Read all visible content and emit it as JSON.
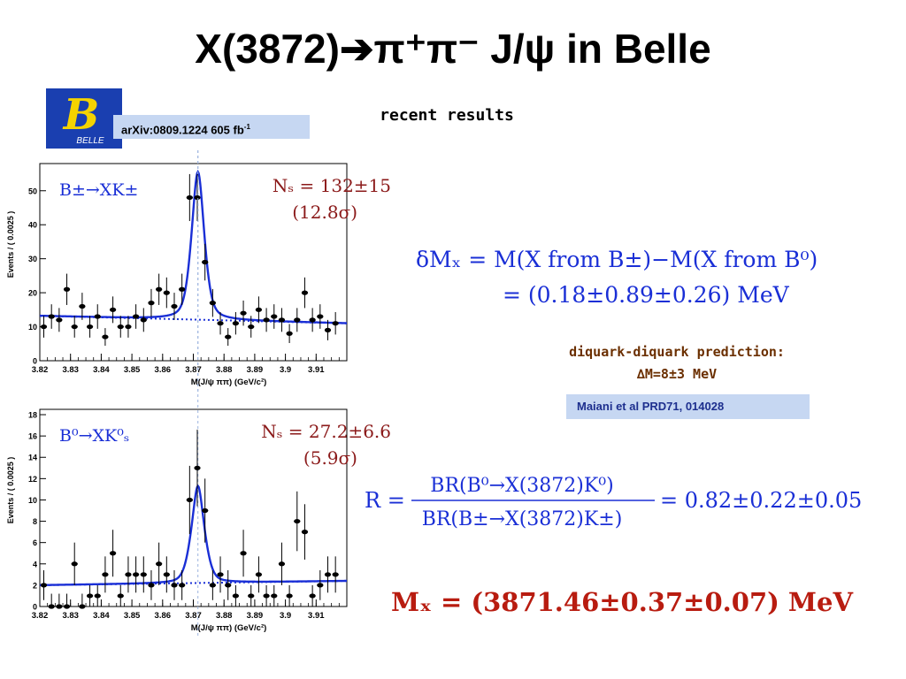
{
  "slide": {
    "title": "X(3872)➔π⁺π⁻ J/ψ in Belle",
    "subtitle": "recent results",
    "logo_text": "BELLE",
    "logo_letter": "B",
    "arxiv": "arXiv:0809.1224  605 fb",
    "arxiv_sup": "-1"
  },
  "formulas": {
    "dm_line1": "δMₓ = M(X from B±)−M(X from B⁰)",
    "dm_line2": "= (0.18±0.89±0.26) MeV",
    "r_lhs": "R =",
    "r_num": "BR(B⁰→X(3872)K⁰)",
    "r_den": "BR(B±→X(3872)K±)",
    "r_rhs": "= 0.82±0.22±0.05",
    "mx": "Mₓ = (3871.46±0.37±0.07) MeV"
  },
  "diquark": {
    "line1": "diquark-diquark prediction:",
    "line2": "∆M=8±3 MeV"
  },
  "maiani_ref": "Maiani et al PRD71, 014028",
  "colors": {
    "fit_line": "#1a2fd6",
    "signal_text": "#8b1a1a",
    "box_fill": "#c6d7f2",
    "diquark_text": "#6b2f00",
    "maiani_text": "#1d2f8e",
    "logo_blue": "#1a3fb0",
    "logo_yellow": "#f5d300"
  },
  "chart_data": [
    {
      "type": "scatter",
      "label": "B±→XK±",
      "signal_yield": "Nₛ = 132±15",
      "significance": "(12.8σ)",
      "xlabel": "M(J/ψ ππ) (GeV/c²)",
      "ylabel": "Events / ( 0.0025 )",
      "xlim": [
        3.82,
        3.92
      ],
      "ylim": [
        0,
        58
      ],
      "xticks": [
        "3.82",
        "3.83",
        "3.84",
        "3.85",
        "3.86",
        "3.87",
        "3.88",
        "3.89",
        "3.9",
        "3.91"
      ],
      "xtick_values": [
        3.82,
        3.83,
        3.84,
        3.85,
        3.86,
        3.87,
        3.88,
        3.89,
        3.9,
        3.91
      ],
      "yticks": [
        0,
        10,
        20,
        30,
        40,
        50
      ],
      "peak_line_x": 3.8715,
      "points": [
        {
          "x": 3.8213,
          "y": 10,
          "err": 3.2
        },
        {
          "x": 3.8238,
          "y": 13,
          "err": 3.6
        },
        {
          "x": 3.8263,
          "y": 12,
          "err": 3.5
        },
        {
          "x": 3.8288,
          "y": 21,
          "err": 4.6
        },
        {
          "x": 3.8313,
          "y": 10,
          "err": 3.2
        },
        {
          "x": 3.8338,
          "y": 16,
          "err": 4.0
        },
        {
          "x": 3.8363,
          "y": 10,
          "err": 3.2
        },
        {
          "x": 3.8388,
          "y": 13,
          "err": 3.6
        },
        {
          "x": 3.8413,
          "y": 7,
          "err": 2.6
        },
        {
          "x": 3.8438,
          "y": 15,
          "err": 3.9
        },
        {
          "x": 3.8463,
          "y": 10,
          "err": 3.2
        },
        {
          "x": 3.8488,
          "y": 10,
          "err": 3.2
        },
        {
          "x": 3.8513,
          "y": 13,
          "err": 3.6
        },
        {
          "x": 3.8538,
          "y": 12,
          "err": 3.5
        },
        {
          "x": 3.8563,
          "y": 17,
          "err": 4.1
        },
        {
          "x": 3.8588,
          "y": 21,
          "err": 4.6
        },
        {
          "x": 3.8613,
          "y": 20,
          "err": 4.5
        },
        {
          "x": 3.8638,
          "y": 16,
          "err": 4.0
        },
        {
          "x": 3.8663,
          "y": 21,
          "err": 4.6
        },
        {
          "x": 3.8688,
          "y": 48,
          "err": 6.9
        },
        {
          "x": 3.8713,
          "y": 48,
          "err": 6.9
        },
        {
          "x": 3.8738,
          "y": 29,
          "err": 5.4
        },
        {
          "x": 3.8763,
          "y": 17,
          "err": 4.1
        },
        {
          "x": 3.8788,
          "y": 11,
          "err": 3.3
        },
        {
          "x": 3.8813,
          "y": 7,
          "err": 2.6
        },
        {
          "x": 3.8838,
          "y": 11,
          "err": 3.3
        },
        {
          "x": 3.8863,
          "y": 14,
          "err": 3.7
        },
        {
          "x": 3.8888,
          "y": 10,
          "err": 3.2
        },
        {
          "x": 3.8913,
          "y": 15,
          "err": 3.9
        },
        {
          "x": 3.8938,
          "y": 12,
          "err": 3.5
        },
        {
          "x": 3.8963,
          "y": 13,
          "err": 3.6
        },
        {
          "x": 3.8988,
          "y": 12,
          "err": 3.5
        },
        {
          "x": 3.9013,
          "y": 8,
          "err": 2.8
        },
        {
          "x": 3.9038,
          "y": 12,
          "err": 3.5
        },
        {
          "x": 3.9063,
          "y": 20,
          "err": 4.5
        },
        {
          "x": 3.9088,
          "y": 12,
          "err": 3.5
        },
        {
          "x": 3.9113,
          "y": 13,
          "err": 3.6
        },
        {
          "x": 3.9138,
          "y": 9,
          "err": 3.0
        },
        {
          "x": 3.9163,
          "y": 11,
          "err": 3.3
        }
      ],
      "fit": {
        "background_start": 13.2,
        "background_end": 11.0,
        "peak_x": 3.8715,
        "peak_height": 43.5,
        "sigma": 0.0022,
        "gamma": 0.0022
      }
    },
    {
      "type": "scatter",
      "label": "B⁰→XK⁰ₛ",
      "signal_yield": "Nₛ = 27.2±6.6",
      "significance": "(5.9σ)",
      "xlabel": "M(J/ψ ππ) (GeV/c²)",
      "ylabel": "Events / ( 0.0025 )",
      "xlim": [
        3.82,
        3.92
      ],
      "ylim": [
        0,
        18.5
      ],
      "xticks": [
        "3.82",
        "3.83",
        "3.84",
        "3.85",
        "3.86",
        "3.87",
        "3.88",
        "3.89",
        "3.9",
        "3.91"
      ],
      "xtick_values": [
        3.82,
        3.83,
        3.84,
        3.85,
        3.86,
        3.87,
        3.88,
        3.89,
        3.9,
        3.91
      ],
      "yticks": [
        0,
        2,
        4,
        6,
        8,
        10,
        12,
        14,
        16,
        18
      ],
      "peak_line_x": 3.8715,
      "points": [
        {
          "x": 3.8213,
          "y": 2,
          "err": 1.4
        },
        {
          "x": 3.8238,
          "y": 0,
          "err": 1.2
        },
        {
          "x": 3.8263,
          "y": 0,
          "err": 1.2
        },
        {
          "x": 3.8288,
          "y": 0,
          "err": 1.2
        },
        {
          "x": 3.8313,
          "y": 4,
          "err": 2.0
        },
        {
          "x": 3.8338,
          "y": 0,
          "err": 1.2
        },
        {
          "x": 3.8363,
          "y": 1,
          "err": 1.0
        },
        {
          "x": 3.8388,
          "y": 1,
          "err": 1.0
        },
        {
          "x": 3.8413,
          "y": 3,
          "err": 1.7
        },
        {
          "x": 3.8438,
          "y": 5,
          "err": 2.2
        },
        {
          "x": 3.8463,
          "y": 1,
          "err": 1.0
        },
        {
          "x": 3.8488,
          "y": 3,
          "err": 1.7
        },
        {
          "x": 3.8513,
          "y": 3,
          "err": 1.7
        },
        {
          "x": 3.8538,
          "y": 3,
          "err": 1.7
        },
        {
          "x": 3.8563,
          "y": 2,
          "err": 1.4
        },
        {
          "x": 3.8588,
          "y": 4,
          "err": 2.0
        },
        {
          "x": 3.8613,
          "y": 3,
          "err": 1.7
        },
        {
          "x": 3.8638,
          "y": 2,
          "err": 1.4
        },
        {
          "x": 3.8663,
          "y": 2,
          "err": 1.4
        },
        {
          "x": 3.8688,
          "y": 10,
          "err": 3.2
        },
        {
          "x": 3.8713,
          "y": 13,
          "err": 3.6
        },
        {
          "x": 3.8738,
          "y": 9,
          "err": 3.0
        },
        {
          "x": 3.8763,
          "y": 2,
          "err": 1.4
        },
        {
          "x": 3.8788,
          "y": 3,
          "err": 1.7
        },
        {
          "x": 3.8813,
          "y": 2,
          "err": 1.4
        },
        {
          "x": 3.8838,
          "y": 1,
          "err": 1.0
        },
        {
          "x": 3.8863,
          "y": 5,
          "err": 2.2
        },
        {
          "x": 3.8888,
          "y": 1,
          "err": 1.0
        },
        {
          "x": 3.8913,
          "y": 3,
          "err": 1.7
        },
        {
          "x": 3.8938,
          "y": 1,
          "err": 1.0
        },
        {
          "x": 3.8963,
          "y": 1,
          "err": 1.0
        },
        {
          "x": 3.8988,
          "y": 4,
          "err": 2.0
        },
        {
          "x": 3.9013,
          "y": 1,
          "err": 1.0
        },
        {
          "x": 3.9038,
          "y": 8,
          "err": 2.8
        },
        {
          "x": 3.9063,
          "y": 7,
          "err": 2.6
        },
        {
          "x": 3.9088,
          "y": 1,
          "err": 1.0
        },
        {
          "x": 3.9113,
          "y": 2,
          "err": 1.4
        },
        {
          "x": 3.9138,
          "y": 3,
          "err": 1.7
        },
        {
          "x": 3.9163,
          "y": 3,
          "err": 1.7
        }
      ],
      "fit": {
        "background_start": 2.0,
        "background_end": 2.4,
        "peak_x": 3.8715,
        "peak_height": 9.1,
        "sigma": 0.0024,
        "gamma": 0.002
      }
    }
  ]
}
